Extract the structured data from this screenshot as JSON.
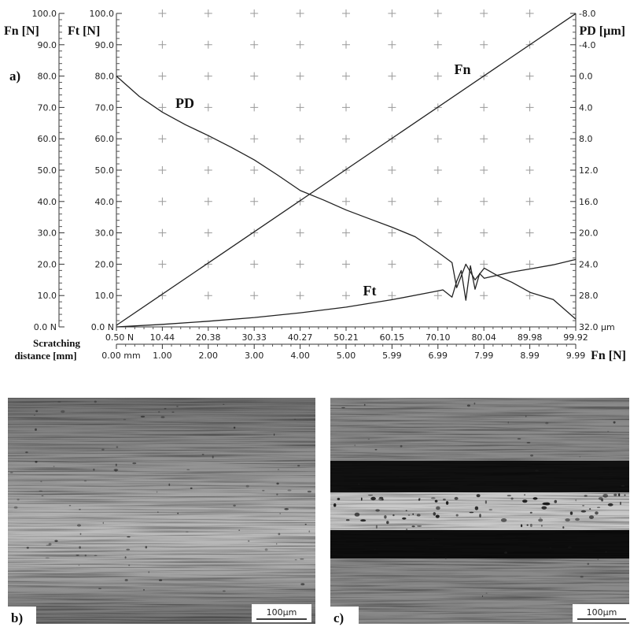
{
  "panels": {
    "a": "a)",
    "b": "b)",
    "c": "c)"
  },
  "micrographs": [
    {
      "panel": "b",
      "scale_bar": "100µm",
      "track": "faint"
    },
    {
      "panel": "c",
      "scale_bar": "100µm",
      "track": "wide-dark"
    }
  ],
  "chart_data": {
    "type": "line",
    "axes": {
      "left_outer": {
        "label": "Fn [N]",
        "range": [
          0,
          100
        ],
        "ticks": [
          "0.0 N",
          "10.0",
          "20.0",
          "30.0",
          "40.0",
          "50.0",
          "60.0",
          "70.0",
          "80.0",
          "90.0",
          "100.0"
        ]
      },
      "left_inner": {
        "label": "Ft [N]",
        "range": [
          0,
          100
        ],
        "ticks": [
          "0.0 N",
          "10.0",
          "20.0",
          "30.0",
          "40.0",
          "50.0",
          "60.0",
          "70.0",
          "80.0",
          "90.0",
          "100.0"
        ]
      },
      "right": {
        "label": "PD [µm]",
        "range": [
          -8,
          32
        ],
        "inverted": true,
        "ticks": [
          "32.0 µm",
          "28.0",
          "24.0",
          "20.0",
          "16.0",
          "12.0",
          "8.0",
          "4.0",
          "0.0",
          "-4.0",
          "-8.0"
        ]
      },
      "bottom_fn": {
        "label": "Fn [N]",
        "range": [
          0.5,
          99.92
        ],
        "ticks": [
          "0.50 N",
          "10.44",
          "20.38",
          "30.33",
          "40.27",
          "50.21",
          "60.15",
          "70.10",
          "80.04",
          "89.98",
          "99.92"
        ]
      },
      "bottom_distance": {
        "label": "Scratching distance [mm]",
        "range": [
          0,
          9.99
        ],
        "ticks": [
          "0.00 mm",
          "1.00",
          "2.00",
          "3.00",
          "4.00",
          "5.00",
          "5.99",
          "6.99",
          "7.99",
          "8.99",
          "9.99"
        ]
      }
    },
    "grid": "plus-markers",
    "series": [
      {
        "name": "Fn",
        "axis": "left",
        "x": [
          0,
          9.99
        ],
        "y": [
          0.5,
          99.92
        ]
      },
      {
        "name": "Ft",
        "axis": "left",
        "x": [
          0,
          1,
          2,
          3,
          4,
          5,
          6,
          6.9,
          7.1,
          7.3,
          7.4,
          7.5,
          7.6,
          7.7,
          7.8,
          7.9,
          8.0,
          8.3,
          8.6,
          9.0,
          9.5,
          9.99
        ],
        "y": [
          0,
          0.8,
          1.8,
          3.0,
          4.5,
          6.3,
          8.7,
          11.2,
          11.8,
          9.5,
          14.5,
          18.0,
          8.5,
          19.5,
          12.0,
          17.0,
          15.5,
          16.5,
          17.5,
          18.5,
          19.8,
          21.5
        ]
      },
      {
        "name": "PD",
        "axis": "right",
        "x": [
          0,
          0.5,
          1,
          1.5,
          2,
          2.5,
          3,
          3.5,
          4,
          4.5,
          5,
          5.5,
          6,
          6.5,
          7,
          7.3,
          7.4,
          7.6,
          7.8,
          8.0,
          8.3,
          8.6,
          9.0,
          9.5,
          9.99
        ],
        "y": [
          0,
          2.6,
          4.6,
          6.2,
          7.6,
          9.1,
          10.7,
          12.6,
          14.6,
          15.8,
          17.1,
          18.2,
          19.3,
          20.5,
          22.5,
          23.8,
          27.0,
          24.0,
          26.0,
          24.5,
          25.5,
          26.3,
          27.6,
          28.5,
          31.0
        ]
      }
    ]
  }
}
